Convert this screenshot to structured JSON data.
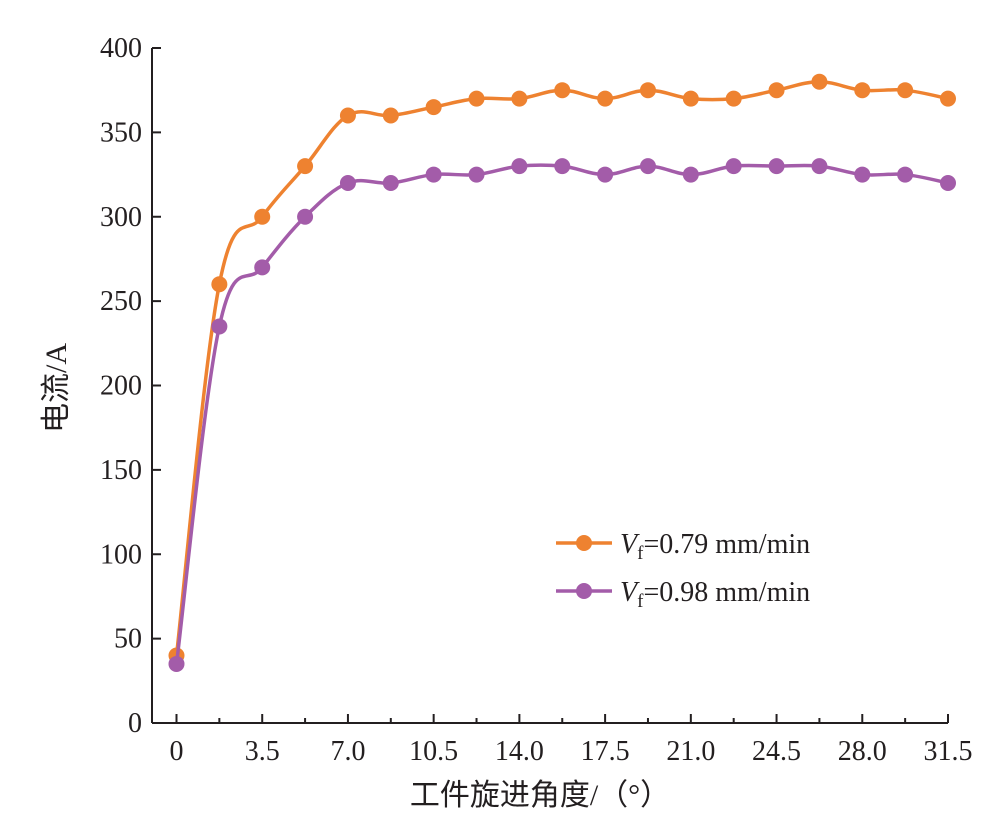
{
  "chart_data": {
    "type": "line",
    "xlabel": "工件旋进角度/（°）",
    "ylabel": "电流/A",
    "xlim": [
      -1.0,
      31.5
    ],
    "ylim": [
      0,
      400
    ],
    "x_ticks": [
      "0",
      "3.5",
      "7.0",
      "10.5",
      "14.0",
      "17.5",
      "21.0",
      "24.5",
      "28.0",
      "31.5"
    ],
    "y_ticks": [
      "0",
      "50",
      "100",
      "150",
      "200",
      "250",
      "300",
      "350",
      "400"
    ],
    "x": [
      0,
      1.75,
      3.5,
      5.25,
      7.0,
      8.75,
      10.5,
      12.25,
      14.0,
      15.75,
      17.5,
      19.25,
      21.0,
      22.75,
      24.5,
      26.25,
      28.0,
      29.75,
      31.5
    ],
    "series": [
      {
        "name_prefix": "V",
        "name_subscript": "f",
        "name_suffix": "=0.79 mm/min",
        "color": "#ee8230",
        "values": [
          40,
          260,
          300,
          330,
          360,
          360,
          365,
          370,
          370,
          375,
          370,
          375,
          370,
          370,
          375,
          380,
          375,
          375,
          370
        ]
      },
      {
        "name_prefix": "V",
        "name_subscript": "f",
        "name_suffix": "=0.98 mm/min",
        "color": "#a35ca9",
        "values": [
          35,
          235,
          270,
          300,
          320,
          320,
          325,
          325,
          330,
          330,
          325,
          330,
          325,
          330,
          330,
          330,
          325,
          325,
          320
        ]
      }
    ],
    "grid": false,
    "legend_position": "right-middle"
  }
}
